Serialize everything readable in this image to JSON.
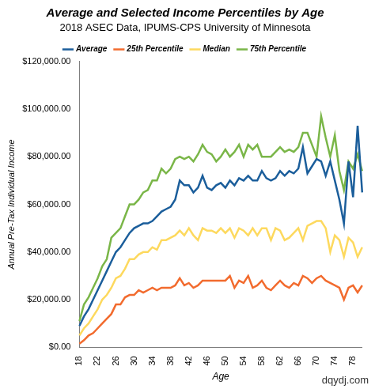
{
  "chart_data": {
    "type": "line",
    "title": "Average and Selected Income Percentiles by Age",
    "subtitle": "2018 ASEC Data, IPUMS-CPS University of Minnesota",
    "x_label": "Age",
    "y_label": "Annual Pre-Tax Individual Income",
    "annotations": [
      "dqydj.com"
    ],
    "legend": "top",
    "grid": false,
    "categories": [
      18,
      null,
      null,
      null,
      22,
      null,
      null,
      null,
      26,
      null,
      null,
      null,
      30,
      null,
      null,
      null,
      34,
      null,
      null,
      null,
      38,
      null,
      null,
      null,
      42,
      null,
      null,
      null,
      46,
      null,
      null,
      null,
      50,
      null,
      null,
      null,
      54,
      null,
      null,
      null,
      58,
      null,
      null,
      null,
      62,
      null,
      null,
      null,
      66,
      null,
      null,
      null,
      70,
      null,
      null,
      null,
      74,
      null,
      null,
      null,
      78,
      null,
      null
    ],
    "ylim": [
      0,
      120000
    ],
    "yticks": [
      {
        "value": 0,
        "label": "$0.00"
      },
      {
        "value": 20000,
        "label": "$20,000.00"
      },
      {
        "value": 40000,
        "label": "$40,000.00"
      },
      {
        "value": 60000,
        "label": "$60,000.00"
      },
      {
        "value": 80000,
        "label": "$80,000.00"
      },
      {
        "value": 100000,
        "label": "$100,000.00"
      },
      {
        "value": 120000,
        "label": "$120,000.00"
      }
    ],
    "series": [
      {
        "name": "Average",
        "color": "#1b5e9b",
        "values": [
          9000,
          13000,
          16000,
          20000,
          24000,
          28000,
          32000,
          36000,
          40000,
          42000,
          45000,
          48000,
          50000,
          51000,
          52000,
          52000,
          53000,
          55000,
          57000,
          58000,
          59000,
          62000,
          70000,
          68000,
          68000,
          65000,
          67000,
          72000,
          67000,
          66000,
          68000,
          69000,
          67000,
          70000,
          68000,
          71000,
          70000,
          72000,
          70000,
          70000,
          74000,
          71000,
          70000,
          71000,
          74000,
          72000,
          74000,
          73000,
          75000,
          84000,
          73000,
          76000,
          79000,
          78000,
          72000,
          78000,
          70000,
          62000,
          52000,
          78000,
          63000,
          93000,
          65000
        ]
      },
      {
        "name": "25th Percentile",
        "color": "#f26b2e",
        "values": [
          1500,
          3000,
          5000,
          6000,
          8000,
          10000,
          12000,
          14000,
          18000,
          18000,
          21000,
          22000,
          22000,
          24000,
          23000,
          24000,
          25000,
          24000,
          25000,
          25000,
          25000,
          26000,
          29000,
          26000,
          27000,
          25000,
          26000,
          28000,
          28000,
          28000,
          28000,
          28000,
          28000,
          30000,
          25000,
          28000,
          27000,
          30000,
          25000,
          26000,
          28000,
          25000,
          24000,
          26000,
          28000,
          26000,
          25000,
          27000,
          26000,
          30000,
          29000,
          27000,
          29000,
          30000,
          28000,
          27000,
          26000,
          25000,
          20000,
          25000,
          26000,
          23000,
          26000
        ]
      },
      {
        "name": "Median",
        "color": "#fdd95e",
        "values": [
          5000,
          8000,
          10000,
          13000,
          16000,
          20000,
          22000,
          25000,
          29000,
          30000,
          33000,
          37000,
          37000,
          39000,
          40000,
          40000,
          42000,
          41000,
          45000,
          45000,
          46000,
          47000,
          49000,
          47000,
          50000,
          47000,
          45000,
          50000,
          49000,
          49000,
          48000,
          50000,
          48000,
          50000,
          46000,
          50000,
          49000,
          47000,
          50000,
          47000,
          50000,
          50000,
          45000,
          50000,
          49000,
          45000,
          46000,
          48000,
          50000,
          45000,
          51000,
          52000,
          53000,
          53000,
          50000,
          40000,
          47000,
          45000,
          38000,
          46000,
          44000,
          38000,
          42000
        ]
      },
      {
        "name": "75th Percentile",
        "color": "#7ab648",
        "values": [
          11000,
          18000,
          21000,
          25000,
          29000,
          34000,
          37000,
          46000,
          48000,
          50000,
          55000,
          60000,
          60000,
          62000,
          65000,
          66000,
          70000,
          70000,
          75000,
          73000,
          75000,
          79000,
          80000,
          79000,
          80000,
          78000,
          81000,
          85000,
          82000,
          81000,
          78000,
          80000,
          83000,
          80000,
          82000,
          85000,
          80000,
          85000,
          83000,
          85000,
          80000,
          80000,
          80000,
          82000,
          84000,
          82000,
          83000,
          82000,
          84000,
          90000,
          90000,
          85000,
          80000,
          97000,
          88000,
          80000,
          89000,
          74000,
          66000,
          78000,
          75000,
          81000,
          74000
        ]
      }
    ]
  }
}
